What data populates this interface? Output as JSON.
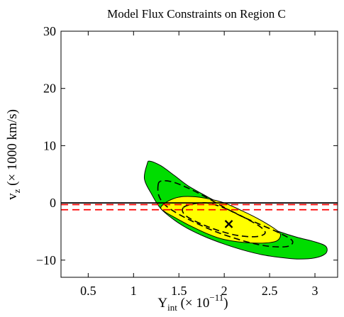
{
  "chart_data": {
    "type": "contour",
    "title": "Model Flux Constraints on Region C",
    "xlabel": {
      "base": "Y",
      "sub": "int",
      "rest": " (× 10",
      "sup": "−11",
      "close": ")"
    },
    "ylabel": {
      "base": "v",
      "sub": "z",
      "rest": " (× 1000 km/s)"
    },
    "xlim": [
      0.2,
      3.25
    ],
    "ylim": [
      -13,
      30
    ],
    "xticks": [
      0.5,
      1,
      1.5,
      2,
      2.5,
      3
    ],
    "xtick_labels": [
      "0.5",
      "1",
      "1.5",
      "2",
      "2.5",
      "3"
    ],
    "yticks": [
      -10,
      0,
      10,
      20,
      30
    ],
    "ytick_labels": [
      "−10",
      "0",
      "10",
      "20",
      "30"
    ],
    "grid": false,
    "colors": {
      "outer_region": "#00dd00",
      "inner_region": "#ffff00",
      "outline": "#000000",
      "reference_red": "#ff0000"
    },
    "best_fit": {
      "x": 2.05,
      "y": -3.7,
      "marker": "x"
    },
    "reference_lines": [
      {
        "y": 0,
        "style": "solid",
        "color": "#000000"
      },
      {
        "y": -0.3,
        "style": "dashed",
        "color": "#ff0000"
      },
      {
        "y": -1.2,
        "style": "dashed",
        "color": "#ff0000"
      }
    ],
    "regions": [
      {
        "level": "outer",
        "style": "filled",
        "color": "#00dd00",
        "points": [
          [
            1.15,
            6.8
          ],
          [
            1.18,
            7.3
          ],
          [
            1.3,
            6.5
          ],
          [
            1.45,
            4.8
          ],
          [
            1.6,
            3.0
          ],
          [
            1.8,
            1.2
          ],
          [
            2.0,
            -0.5
          ],
          [
            2.2,
            -2.2
          ],
          [
            2.4,
            -3.8
          ],
          [
            2.6,
            -5.0
          ],
          [
            2.8,
            -6.0
          ],
          [
            3.0,
            -6.8
          ],
          [
            3.12,
            -7.6
          ],
          [
            3.12,
            -8.8
          ],
          [
            3.0,
            -9.6
          ],
          [
            2.8,
            -9.8
          ],
          [
            2.6,
            -9.5
          ],
          [
            2.4,
            -9.0
          ],
          [
            2.2,
            -8.2
          ],
          [
            2.0,
            -7.2
          ],
          [
            1.8,
            -6.0
          ],
          [
            1.6,
            -4.5
          ],
          [
            1.45,
            -3.0
          ],
          [
            1.3,
            -1.0
          ],
          [
            1.2,
            1.5
          ],
          [
            1.12,
            4.2
          ]
        ]
      },
      {
        "level": "inner",
        "style": "filled",
        "color": "#ffff00",
        "points": [
          [
            1.3,
            -0.8
          ],
          [
            1.38,
            0.3
          ],
          [
            1.5,
            1.0
          ],
          [
            1.65,
            1.1
          ],
          [
            1.8,
            0.8
          ],
          [
            2.0,
            0.0
          ],
          [
            2.2,
            -1.4
          ],
          [
            2.4,
            -3.0
          ],
          [
            2.58,
            -4.8
          ],
          [
            2.62,
            -5.8
          ],
          [
            2.55,
            -6.8
          ],
          [
            2.3,
            -7.0
          ],
          [
            2.0,
            -6.4
          ],
          [
            1.8,
            -5.3
          ],
          [
            1.6,
            -3.8
          ],
          [
            1.45,
            -2.5
          ],
          [
            1.35,
            -1.6
          ]
        ]
      },
      {
        "level": "outer-dashed",
        "style": "dashed",
        "color": "#000000",
        "points": [
          [
            1.27,
            3.0
          ],
          [
            1.3,
            3.8
          ],
          [
            1.42,
            3.7
          ],
          [
            1.6,
            2.6
          ],
          [
            1.8,
            1.0
          ],
          [
            2.0,
            -0.8
          ],
          [
            2.2,
            -2.4
          ],
          [
            2.4,
            -3.8
          ],
          [
            2.6,
            -5.2
          ],
          [
            2.75,
            -6.6
          ],
          [
            2.7,
            -7.6
          ],
          [
            2.5,
            -7.6
          ],
          [
            2.3,
            -7.0
          ],
          [
            2.1,
            -6.1
          ],
          [
            1.9,
            -5.0
          ],
          [
            1.7,
            -3.6
          ],
          [
            1.5,
            -2.0
          ],
          [
            1.35,
            -0.4
          ],
          [
            1.28,
            1.2
          ]
        ]
      },
      {
        "level": "inner-dashed",
        "style": "dashed",
        "color": "#000000",
        "points": [
          [
            1.55,
            -0.8
          ],
          [
            1.65,
            -0.2
          ],
          [
            1.8,
            0.0
          ],
          [
            1.95,
            -0.6
          ],
          [
            2.1,
            -1.6
          ],
          [
            2.25,
            -2.8
          ],
          [
            2.4,
            -4.2
          ],
          [
            2.45,
            -5.3
          ],
          [
            2.35,
            -5.9
          ],
          [
            2.15,
            -5.7
          ],
          [
            1.95,
            -4.9
          ],
          [
            1.78,
            -3.9
          ],
          [
            1.63,
            -2.8
          ],
          [
            1.55,
            -1.8
          ]
        ]
      }
    ]
  }
}
